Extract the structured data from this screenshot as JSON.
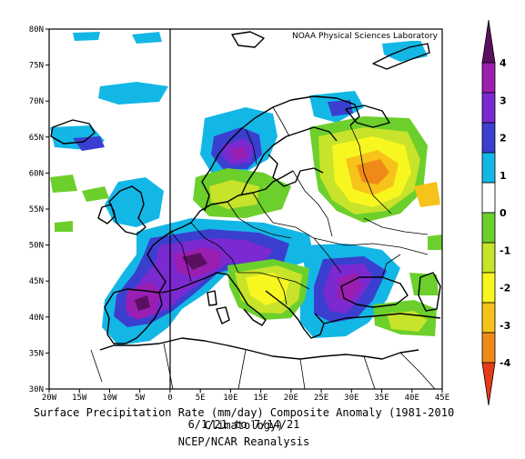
{
  "map": {
    "credit": "NOAA Physical Sciences Laboratory",
    "lat_labels": [
      "80N",
      "75N",
      "70N",
      "65N",
      "60N",
      "55N",
      "50N",
      "45N",
      "40N",
      "35N",
      "30N"
    ],
    "lon_labels": [
      "20W",
      "15W",
      "10W",
      "5W",
      "0",
      "5E",
      "10E",
      "15E",
      "20E",
      "25E",
      "30E",
      "35E",
      "40E",
      "45E"
    ],
    "extent": {
      "lon_min": -20,
      "lon_max": 45,
      "lat_min": 30,
      "lat_max": 80
    },
    "reference_meridian": 0
  },
  "colorbar": {
    "ticks": [
      "4",
      "3",
      "2",
      "1",
      "0",
      "-1",
      "-2",
      "-3",
      "-4"
    ],
    "colors": [
      "#5a1060",
      "#9a1fb0",
      "#7a2ad0",
      "#3a3fd0",
      "#13b7e6",
      "#ffffff",
      "#6ccf2c",
      "#c7e32a",
      "#f7f71f",
      "#f7c21a",
      "#f08a17",
      "#e83a16"
    ]
  },
  "caption": {
    "title": "Surface Precipitation Rate (mm/day) Composite Anomaly (1981-2010 Climatology)",
    "dates": "6/1/21  to 7/14/21",
    "source": "NCEP/NCAR Reanalysis"
  }
}
